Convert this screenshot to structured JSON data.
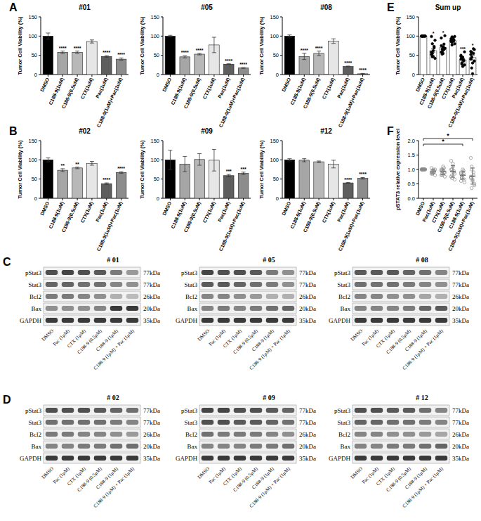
{
  "chart_data": [
    {
      "type": "bar",
      "panel": "A",
      "title": "#01",
      "y_label": "Tumor Cell Viability (%)",
      "categories": [
        "DMSO",
        "C188-9(1uM)",
        "C188-9(0.5uM)",
        "CTX(1uM)",
        "Pac(1uM)",
        "C188-9(1uM)+Pac(1uM)"
      ],
      "values": [
        100,
        58,
        58,
        86,
        47,
        40
      ],
      "errors": [
        8,
        3,
        3,
        4,
        2,
        3
      ],
      "colors": [
        "#000000",
        "#a6a6a6",
        "#b8b8b8",
        "#e6e6e6",
        "#5e5e5e",
        "#8c8c8c"
      ],
      "significance": [
        null,
        "****",
        "****",
        null,
        "****",
        "****"
      ],
      "ylim": [
        0,
        150
      ],
      "yticks": [
        0,
        50,
        100,
        150
      ]
    },
    {
      "type": "bar",
      "title": "#05",
      "y_label": "Tumor Cell Viability (%)",
      "categories": [
        "DMSO",
        "C188-9(1uM)",
        "C188-9(0.5uM)",
        "CTX(1uM)",
        "Pac(1uM)",
        "C188-9(1uM)+Pac(1uM)"
      ],
      "values": [
        100,
        46,
        53,
        77,
        27,
        17
      ],
      "errors": [
        2,
        3,
        2,
        20,
        1,
        1
      ],
      "colors": [
        "#000000",
        "#a6a6a6",
        "#b8b8b8",
        "#e6e6e6",
        "#5e5e5e",
        "#8c8c8c"
      ],
      "significance": [
        null,
        "****",
        "****",
        null,
        "****",
        "****"
      ],
      "ylim": [
        0,
        150
      ],
      "yticks": [
        0,
        50,
        100,
        150
      ]
    },
    {
      "type": "bar",
      "title": "#08",
      "y_label": "Tumor Cell Viability (%)",
      "categories": [
        "DMSO",
        "C188-9(1uM)",
        "C188-9(0.5uM)",
        "CTX(1uM)",
        "Pac(1uM)",
        "C188-9(1uM)+Pac(1uM)"
      ],
      "values": [
        100,
        47,
        55,
        87,
        21,
        2
      ],
      "errors": [
        3,
        8,
        6,
        6,
        1,
        1
      ],
      "colors": [
        "#000000",
        "#a6a6a6",
        "#b8b8b8",
        "#e6e6e6",
        "#5e5e5e",
        "#8c8c8c"
      ],
      "significance": [
        null,
        "****",
        "****",
        null,
        "****",
        "****"
      ],
      "ylim": [
        0,
        150
      ],
      "yticks": [
        0,
        50,
        100,
        150
      ]
    },
    {
      "type": "bar",
      "panel": "B",
      "title": "#02",
      "y_label": "Tumor Cell Viability (%)",
      "categories": [
        "DMSO",
        "C188-9(1uM)",
        "C188-9(0.5uM)",
        "CTX(1uM)",
        "Pac(1uM)",
        "C188-9(1uM)+Pac(1uM)"
      ],
      "values": [
        100,
        73,
        79,
        91,
        38,
        67
      ],
      "errors": [
        5,
        4,
        2,
        5,
        2,
        2
      ],
      "colors": [
        "#000000",
        "#a6a6a6",
        "#b8b8b8",
        "#e6e6e6",
        "#5e5e5e",
        "#8c8c8c"
      ],
      "significance": [
        null,
        "**",
        "**",
        null,
        "****",
        "****"
      ],
      "ylim": [
        0,
        150
      ],
      "yticks": [
        0,
        50,
        100,
        150
      ]
    },
    {
      "type": "bar",
      "title": "#09",
      "y_label": "Tumor Cell Viability (%)",
      "categories": [
        "DMSO",
        "C188-9(1uM)",
        "C188-9(0.5uM)",
        "CTX(1uM)",
        "Pac(1uM)",
        "C188-9(1uM)+Pac(1uM)"
      ],
      "values": [
        100,
        89,
        101,
        99,
        59,
        65
      ],
      "errors": [
        25,
        20,
        15,
        28,
        3,
        3
      ],
      "colors": [
        "#000000",
        "#a6a6a6",
        "#b8b8b8",
        "#e6e6e6",
        "#5e5e5e",
        "#8c8c8c"
      ],
      "significance": [
        null,
        null,
        null,
        null,
        "***",
        "***"
      ],
      "ylim": [
        0,
        150
      ],
      "yticks": [
        0,
        50,
        100,
        150
      ]
    },
    {
      "type": "bar",
      "title": "#12",
      "y_label": "Tumor Cell Viability (%)",
      "categories": [
        "DMSO",
        "C188-9(1uM)",
        "C188-9(0.5uM)",
        "CTX(1uM)",
        "Pac(1uM)",
        "C188-9(1uM)+Pac(1uM)"
      ],
      "values": [
        100,
        99,
        95,
        89,
        40,
        52
      ],
      "errors": [
        3,
        4,
        2,
        10,
        1,
        2
      ],
      "colors": [
        "#000000",
        "#a6a6a6",
        "#b8b8b8",
        "#e6e6e6",
        "#5e5e5e",
        "#8c8c8c"
      ],
      "significance": [
        null,
        null,
        null,
        null,
        "****",
        "****"
      ],
      "ylim": [
        0,
        150
      ],
      "yticks": [
        0,
        50,
        100,
        150
      ]
    },
    {
      "type": "bar",
      "panel": "E",
      "title": "Sum up",
      "y_label": "Tumor Cell Viability (%)",
      "categories": [
        "DMSO",
        "C188-9(1uM)",
        "C188-9(0.5uM)",
        "CTX(1uM)",
        "Pac(1uM)",
        "C188-9(1uM)+Pac(1uM)"
      ],
      "values": [
        100,
        62,
        70,
        88,
        38,
        44
      ],
      "errors": [
        0,
        5,
        4,
        2,
        3,
        6
      ],
      "colors": [
        "#ffffff",
        "#ffffff",
        "#ffffff",
        "#ffffff",
        "#ffffff",
        "#ffffff"
      ],
      "marker": "circle",
      "points": [
        [
          100,
          100,
          100,
          100,
          100,
          100,
          100,
          100,
          100,
          100,
          100,
          100
        ],
        [
          58,
          46,
          47,
          73,
          89,
          99,
          55,
          62,
          70,
          42,
          52,
          80
        ],
        [
          58,
          53,
          55,
          79,
          101,
          95,
          60,
          72,
          65,
          68,
          75,
          66
        ],
        [
          86,
          77,
          87,
          91,
          99,
          89,
          84,
          95,
          88,
          80,
          93,
          98
        ],
        [
          47,
          27,
          21,
          38,
          59,
          40,
          30,
          45,
          35,
          25,
          50,
          42
        ],
        [
          40,
          17,
          2,
          67,
          65,
          52,
          45,
          30,
          55,
          35,
          60,
          58
        ]
      ],
      "significance": [
        null,
        "*",
        "*",
        null,
        "***",
        "*"
      ],
      "ylim": [
        0,
        150
      ],
      "yticks": [
        0,
        50,
        100,
        150
      ]
    },
    {
      "type": "dot",
      "panel": "F",
      "y_label": "pSTAT3 relative expression level",
      "categories": [
        "DMSO",
        "Pac(1uM)",
        "CTX(1uM)",
        "C188-9(0.5uM)",
        "C188-9(1uM)",
        "C188-9(1uM)+Pac(1uM)"
      ],
      "values": [
        1.0,
        0.92,
        0.92,
        0.93,
        0.8,
        0.77
      ],
      "errors": [
        0,
        0.07,
        0.1,
        0.2,
        0.14,
        0.28
      ],
      "color": "#8a8a8a",
      "marker": "open-circle",
      "points": [
        [
          1,
          1,
          1,
          1,
          1,
          1,
          1,
          1,
          1,
          1,
          1,
          1
        ],
        [
          0.9,
          0.85,
          1.0,
          0.95,
          0.8,
          1.05,
          0.9,
          0.88,
          0.92,
          1.0,
          0.85,
          0.95
        ],
        [
          0.95,
          0.8,
          1.1,
          0.9,
          0.75,
          1.0,
          0.85,
          0.95,
          1.05,
          0.9,
          0.8,
          0.98
        ],
        [
          1.3,
          0.7,
          1.2,
          0.9,
          0.65,
          1.0,
          0.8,
          1.1,
          0.95,
          0.85,
          0.75,
          1.0
        ],
        [
          0.6,
          0.75,
          1.0,
          0.85,
          0.65,
          0.9,
          0.7,
          0.8,
          0.95,
          0.55,
          0.85,
          0.7
        ],
        [
          1.4,
          0.35,
          0.6,
          0.9,
          0.5,
          0.75,
          1.0,
          0.65,
          0.8,
          0.45,
          0.7,
          1.1
        ]
      ],
      "comparisons": [
        {
          "from": 0,
          "to": 5,
          "label": "*"
        },
        {
          "from": 0,
          "to": 4,
          "label": "*"
        }
      ],
      "ylim": [
        0,
        2
      ],
      "yticks": [
        {
          "value": 0,
          "label": "0.0"
        },
        {
          "value": 0.5,
          "label": "0.5"
        },
        {
          "value": 1,
          "label": "1.0"
        },
        {
          "value": 1.5,
          "label": "1.5"
        },
        {
          "value": 2,
          "label": "2.0"
        }
      ]
    }
  ],
  "blot_rows": [
    {
      "label": "pStat3",
      "size": "77kDa"
    },
    {
      "label": "Stat3",
      "size": "77kDa"
    },
    {
      "label": "Bcl2",
      "size": "26kDa"
    },
    {
      "label": "Bax",
      "size": "20kDa"
    },
    {
      "label": "GAPDH",
      "size": "35kDa"
    }
  ],
  "blot_lanes": [
    "DMSO",
    "Pac (1μM)",
    "CTX (1μM)",
    "C188-9 (0.5μM)",
    "C188-9 (1μM)",
    "C188-9 (1μM) + Pac (1μM)"
  ],
  "blots": [
    {
      "panel": "C",
      "title": "# 01",
      "intensity": [
        [
          0.75,
          0.8,
          0.75,
          0.7,
          0.55,
          0.4
        ],
        [
          0.65,
          0.65,
          0.6,
          0.6,
          0.5,
          0.45
        ],
        [
          0.55,
          0.55,
          0.5,
          0.45,
          0.3,
          0.25
        ],
        [
          0.45,
          0.45,
          0.45,
          0.5,
          0.85,
          0.85
        ],
        [
          0.85,
          0.85,
          0.85,
          0.85,
          0.85,
          0.85
        ]
      ]
    },
    {
      "title": "# 05",
      "intensity": [
        [
          0.8,
          0.75,
          0.75,
          0.7,
          0.55,
          0.45
        ],
        [
          0.7,
          0.7,
          0.65,
          0.6,
          0.55,
          0.45
        ],
        [
          0.5,
          0.5,
          0.45,
          0.4,
          0.3,
          0.3
        ],
        [
          0.5,
          0.55,
          0.5,
          0.55,
          0.6,
          0.65
        ],
        [
          0.85,
          0.85,
          0.85,
          0.85,
          0.85,
          0.85
        ]
      ]
    },
    {
      "title": "# 08",
      "intensity": [
        [
          0.7,
          0.7,
          0.7,
          0.65,
          0.6,
          0.5
        ],
        [
          0.6,
          0.6,
          0.6,
          0.55,
          0.5,
          0.45
        ],
        [
          0.5,
          0.5,
          0.45,
          0.45,
          0.35,
          0.3
        ],
        [
          0.5,
          0.5,
          0.5,
          0.55,
          0.65,
          0.7
        ],
        [
          0.85,
          0.85,
          0.85,
          0.85,
          0.85,
          0.85
        ]
      ]
    },
    {
      "panel": "D",
      "title": "# 02",
      "intensity": [
        [
          0.75,
          0.75,
          0.75,
          0.7,
          0.65,
          0.6
        ],
        [
          0.6,
          0.6,
          0.6,
          0.6,
          0.55,
          0.5
        ],
        [
          0.55,
          0.55,
          0.5,
          0.5,
          0.45,
          0.4
        ],
        [
          0.5,
          0.5,
          0.55,
          0.55,
          0.6,
          0.6
        ],
        [
          0.85,
          0.85,
          0.85,
          0.85,
          0.85,
          0.85
        ]
      ]
    },
    {
      "title": "# 09",
      "intensity": [
        [
          0.8,
          0.8,
          0.75,
          0.75,
          0.7,
          0.65
        ],
        [
          0.75,
          0.75,
          0.7,
          0.7,
          0.65,
          0.6
        ],
        [
          0.6,
          0.55,
          0.55,
          0.55,
          0.5,
          0.45
        ],
        [
          0.5,
          0.5,
          0.5,
          0.55,
          0.55,
          0.6
        ],
        [
          0.85,
          0.85,
          0.85,
          0.85,
          0.85,
          0.85
        ]
      ]
    },
    {
      "title": "# 12",
      "intensity": [
        [
          0.75,
          0.75,
          0.7,
          0.7,
          0.6,
          0.5
        ],
        [
          0.65,
          0.65,
          0.6,
          0.6,
          0.55,
          0.5
        ],
        [
          0.5,
          0.5,
          0.45,
          0.45,
          0.4,
          0.35
        ],
        [
          0.5,
          0.5,
          0.55,
          0.55,
          0.6,
          0.65
        ],
        [
          0.85,
          0.85,
          0.85,
          0.85,
          0.85,
          0.85
        ]
      ]
    }
  ]
}
